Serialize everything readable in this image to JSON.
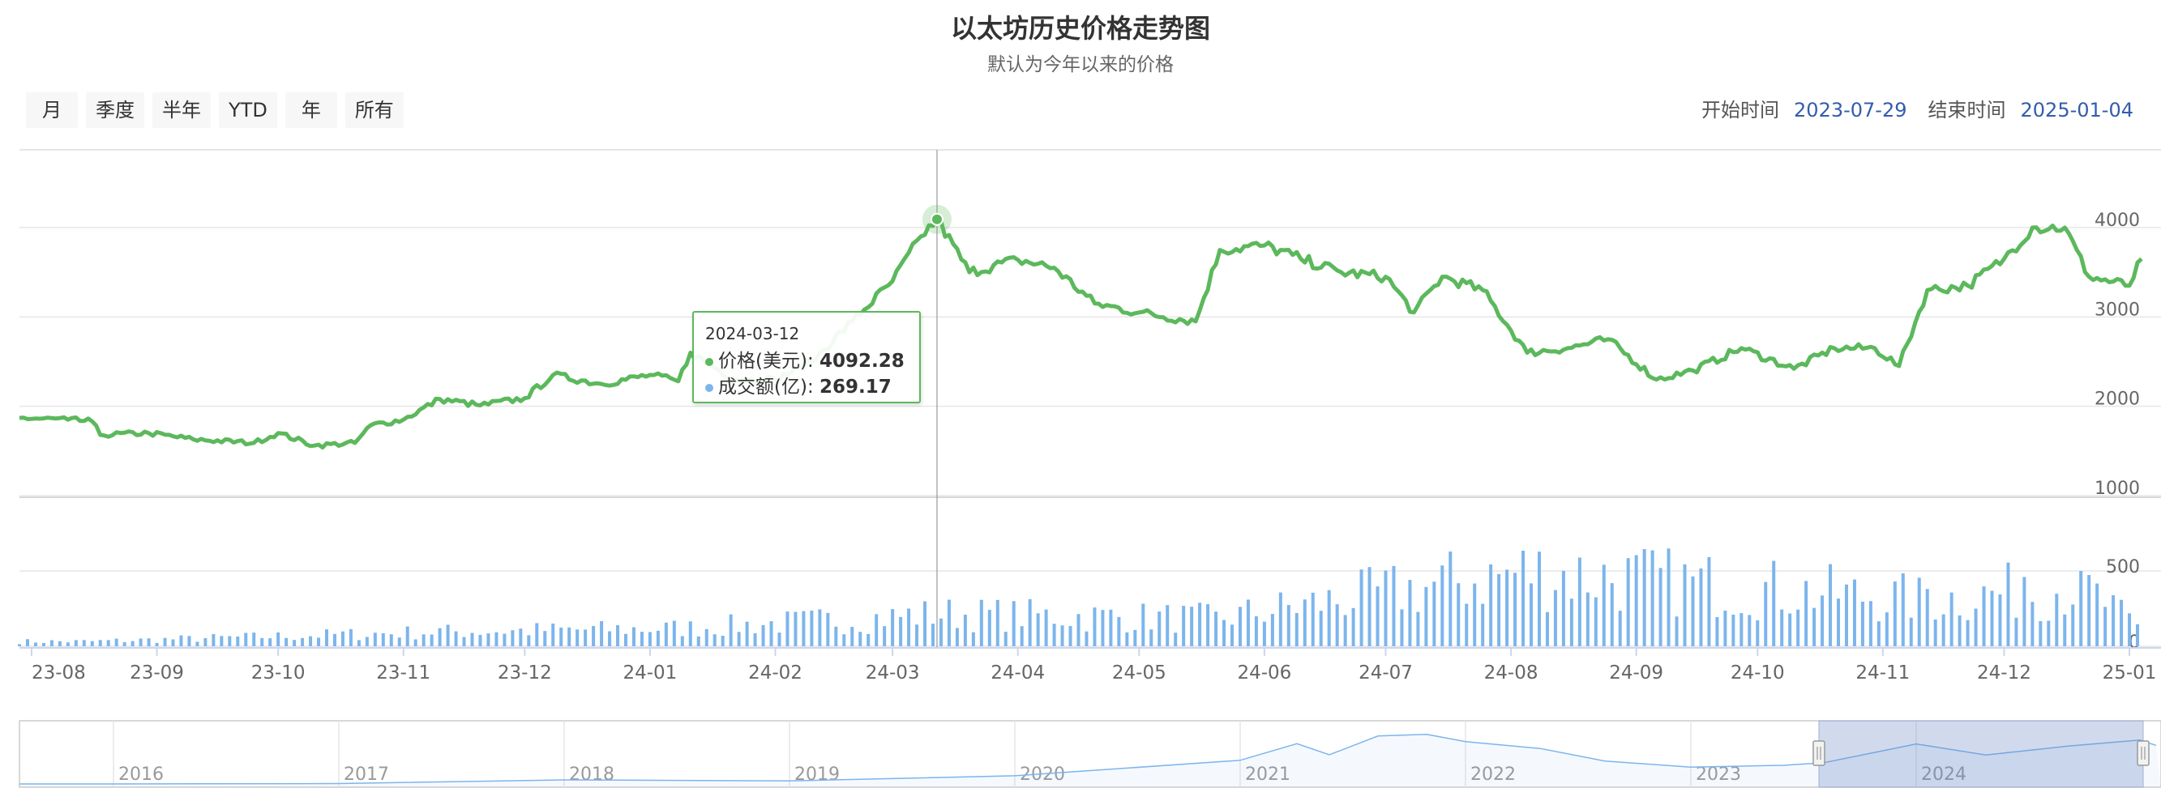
{
  "header": {
    "title": "以太坊历史价格走势图",
    "subtitle": "默认为今年以来的价格"
  },
  "range_buttons": [
    "月",
    "季度",
    "半年",
    "YTD",
    "年",
    "所有"
  ],
  "date_range": {
    "start_label": "开始时间",
    "start_value": "2023-07-29",
    "end_label": "结束时间",
    "end_value": "2025-01-04"
  },
  "tooltip": {
    "date": "2024-03-12",
    "price_label": "价格(美元):",
    "price_value": "4092.28",
    "volume_label": "成交额(亿):",
    "volume_value": "269.17"
  },
  "colors": {
    "price_line": "#5cb85c",
    "volume_bar": "#7cb5ec",
    "navigator_line": "#7cb5ec",
    "navigator_mask": "rgba(102,133,194,0.3)",
    "date_value": "#335cad"
  },
  "chart_data": {
    "type": "line",
    "title": "以太坊历史价格走势图",
    "subtitle": "默认为今年以来的价格",
    "x_range": [
      "2023-07-29",
      "2025-01-04"
    ],
    "x_tick_labels": [
      "23-08",
      "23-09",
      "23-10",
      "23-11",
      "23-12",
      "24-01",
      "24-02",
      "24-03",
      "24-04",
      "24-05",
      "24-06",
      "24-07",
      "24-08",
      "24-09",
      "24-10",
      "24-11",
      "24-12",
      "25-01"
    ],
    "price_axis": {
      "ticks": [
        "1000",
        "2000",
        "3000",
        "4000"
      ],
      "ylim": [
        1000,
        4500
      ]
    },
    "volume_axis": {
      "ticks": [
        "0",
        "500"
      ],
      "ylim": [
        0,
        700
      ]
    },
    "series": [
      {
        "name": "价格(美元)",
        "points": [
          [
            "2023-07-29",
            1870
          ],
          [
            "2023-08-10",
            1850
          ],
          [
            "2023-08-16",
            1830
          ],
          [
            "2023-08-18",
            1680
          ],
          [
            "2023-08-30",
            1700
          ],
          [
            "2023-09-10",
            1630
          ],
          [
            "2023-09-25",
            1590
          ],
          [
            "2023-10-01",
            1700
          ],
          [
            "2023-10-10",
            1560
          ],
          [
            "2023-10-20",
            1590
          ],
          [
            "2023-10-24",
            1790
          ],
          [
            "2023-11-01",
            1850
          ],
          [
            "2023-11-10",
            2080
          ],
          [
            "2023-11-20",
            2010
          ],
          [
            "2023-12-01",
            2090
          ],
          [
            "2023-12-08",
            2350
          ],
          [
            "2023-12-20",
            2250
          ],
          [
            "2024-01-01",
            2350
          ],
          [
            "2024-01-08",
            2280
          ],
          [
            "2024-01-11",
            2600
          ],
          [
            "2024-01-22",
            2300
          ],
          [
            "2024-02-01",
            2300
          ],
          [
            "2024-02-10",
            2500
          ],
          [
            "2024-02-20",
            2950
          ],
          [
            "2024-03-01",
            3400
          ],
          [
            "2024-03-08",
            3900
          ],
          [
            "2024-03-12",
            4092.28
          ],
          [
            "2024-03-20",
            3500
          ],
          [
            "2024-04-01",
            3640
          ],
          [
            "2024-04-10",
            3550
          ],
          [
            "2024-04-20",
            3150
          ],
          [
            "2024-05-01",
            3050
          ],
          [
            "2024-05-15",
            2950
          ],
          [
            "2024-05-21",
            3750
          ],
          [
            "2024-06-01",
            3800
          ],
          [
            "2024-06-10",
            3650
          ],
          [
            "2024-06-20",
            3500
          ],
          [
            "2024-07-01",
            3450
          ],
          [
            "2024-07-08",
            3050
          ],
          [
            "2024-07-15",
            3450
          ],
          [
            "2024-07-25",
            3300
          ],
          [
            "2024-08-05",
            2600
          ],
          [
            "2024-08-15",
            2650
          ],
          [
            "2024-08-25",
            2750
          ],
          [
            "2024-09-06",
            2300
          ],
          [
            "2024-09-15",
            2400
          ],
          [
            "2024-09-27",
            2650
          ],
          [
            "2024-10-10",
            2420
          ],
          [
            "2024-10-20",
            2650
          ],
          [
            "2024-10-30",
            2650
          ],
          [
            "2024-11-05",
            2450
          ],
          [
            "2024-11-12",
            3300
          ],
          [
            "2024-11-22",
            3350
          ],
          [
            "2024-12-01",
            3650
          ],
          [
            "2024-12-08",
            4000
          ],
          [
            "2024-12-16",
            4000
          ],
          [
            "2024-12-22",
            3450
          ],
          [
            "2025-01-01",
            3350
          ],
          [
            "2025-01-04",
            3650
          ]
        ]
      },
      {
        "name": "成交额(亿)",
        "summary_points": [
          [
            "2023-08-15",
            40
          ],
          [
            "2023-11-10",
            120
          ],
          [
            "2024-01-10",
            150
          ],
          [
            "2024-03-05",
            250
          ],
          [
            "2024-03-12",
            269.17
          ],
          [
            "2024-05-20",
            230
          ],
          [
            "2024-08-05",
            620
          ],
          [
            "2024-11-12",
            380
          ],
          [
            "2024-12-06",
            460
          ],
          [
            "2024-12-20",
            500
          ],
          [
            "2025-01-04",
            130
          ]
        ]
      }
    ],
    "navigator": {
      "x_labels": [
        "2016",
        "2017",
        "2018",
        "2019",
        "2020",
        "2021",
        "2022",
        "2023",
        "2024"
      ]
    },
    "crosshair_date": "2024-03-12"
  }
}
